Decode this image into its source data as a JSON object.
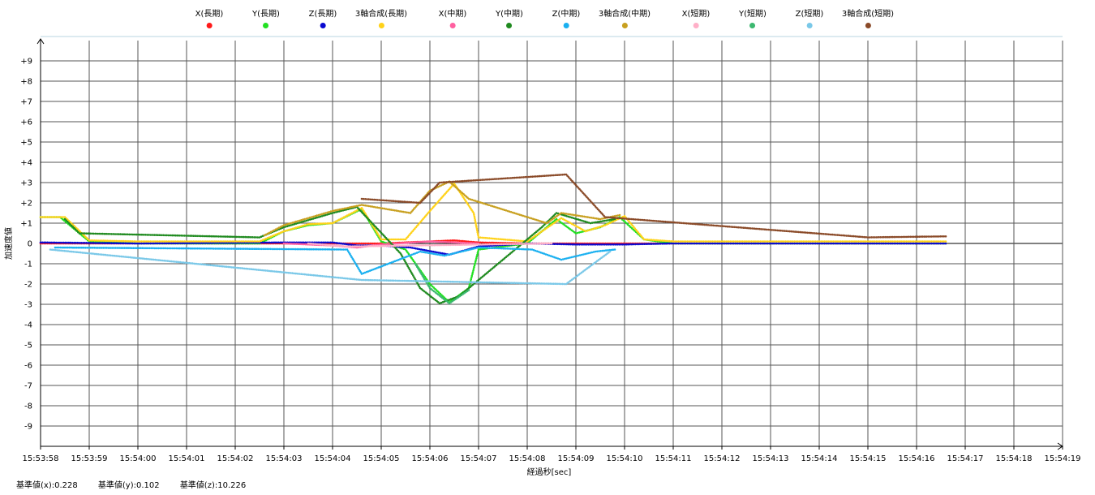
{
  "chart_data": {
    "type": "scatter",
    "title": "",
    "xlabel": "経過秒[sec]",
    "ylabel": "加速度値",
    "x_ticks": [
      "15:53:58",
      "15:53:59",
      "15:54:00",
      "15:54:01",
      "15:54:02",
      "15:54:03",
      "15:54:04",
      "15:54:05",
      "15:54:06",
      "15:54:07",
      "15:54:08",
      "15:54:09",
      "15:54:10",
      "15:54:11",
      "15:54:12",
      "15:54:13",
      "15:54:14",
      "15:54:15",
      "15:54:16",
      "15:54:17",
      "15:54:18",
      "15:54:19"
    ],
    "y_ticks": [
      "+9",
      "+8",
      "+7",
      "+6",
      "+5",
      "+4",
      "+3",
      "+2",
      "+1",
      "0",
      "-1",
      "-2",
      "-3",
      "-4",
      "-5",
      "-6",
      "-7",
      "-8",
      "-9"
    ],
    "ylim": [
      -10,
      10
    ],
    "xlim": [
      "15:53:58",
      "15:54:19"
    ],
    "grid": true,
    "legend_position": "top",
    "series": [
      {
        "name": "X(長期)",
        "color": "#ff1a1a",
        "points": [
          [
            "15:53:58",
            0.0
          ],
          [
            "15:54:00",
            0.0
          ],
          [
            "15:54:05",
            0.0
          ],
          [
            "15:54:06",
            0.1
          ],
          [
            "15:54:06.5",
            0.15
          ],
          [
            "15:54:07",
            0.05
          ],
          [
            "15:54:08",
            0.0
          ],
          [
            "15:54:11",
            0.0
          ],
          [
            "15:54:16.6",
            0.0
          ]
        ]
      },
      {
        "name": "Y(長期)",
        "color": "#22e022",
        "points": [
          [
            "15:53:58",
            1.3
          ],
          [
            "15:53:58.4",
            1.3
          ],
          [
            "15:53:59",
            0.1
          ],
          [
            "15:54:00",
            0.0
          ],
          [
            "15:54:02.5",
            0.0
          ],
          [
            "15:54:03",
            0.6
          ],
          [
            "15:54:03.5",
            0.9
          ],
          [
            "15:54:04",
            1.0
          ],
          [
            "15:54:04.6",
            1.7
          ],
          [
            "15:54:05",
            0.1
          ],
          [
            "15:54:05.5",
            -0.3
          ],
          [
            "15:54:06",
            -2.0
          ],
          [
            "15:54:06.4",
            -2.9
          ],
          [
            "15:54:06.8",
            -2.2
          ],
          [
            "15:54:07",
            -0.3
          ],
          [
            "15:54:08",
            0.0
          ],
          [
            "15:54:08.6",
            1.2
          ],
          [
            "15:54:09",
            0.5
          ],
          [
            "15:54:09.5",
            0.8
          ],
          [
            "15:54:09.9",
            1.3
          ],
          [
            "15:54:10.4",
            0.2
          ],
          [
            "15:54:11",
            0.0
          ],
          [
            "15:54:16.6",
            0.0
          ]
        ]
      },
      {
        "name": "Z(長期)",
        "color": "#0a0ad0",
        "points": [
          [
            "15:53:58",
            0.05
          ],
          [
            "15:54:00",
            0.0
          ],
          [
            "15:54:03",
            0.05
          ],
          [
            "15:54:04",
            0.05
          ],
          [
            "15:54:04.5",
            -0.1
          ],
          [
            "15:54:05",
            -0.1
          ],
          [
            "15:54:05.6",
            -0.2
          ],
          [
            "15:54:06.4",
            -0.55
          ],
          [
            "15:54:07",
            -0.15
          ],
          [
            "15:54:08",
            0.0
          ],
          [
            "15:54:09",
            -0.05
          ],
          [
            "15:54:10",
            -0.05
          ],
          [
            "15:54:11",
            0.0
          ],
          [
            "15:54:16.6",
            0.0
          ]
        ]
      },
      {
        "name": "3軸合成(長期)",
        "color": "#ffd21a",
        "points": [
          [
            "15:53:58",
            1.3
          ],
          [
            "15:53:58.5",
            1.3
          ],
          [
            "15:53:59",
            0.15
          ],
          [
            "15:54:00",
            0.1
          ],
          [
            "15:54:02.5",
            0.1
          ],
          [
            "15:54:03",
            0.6
          ],
          [
            "15:54:03.5",
            0.95
          ],
          [
            "15:54:04",
            1.0
          ],
          [
            "15:54:04.6",
            1.75
          ],
          [
            "15:54:05",
            0.2
          ],
          [
            "15:54:05.5",
            0.2
          ],
          [
            "15:54:06",
            1.6
          ],
          [
            "15:54:06.5",
            2.95
          ],
          [
            "15:54:06.9",
            1.5
          ],
          [
            "15:54:07",
            0.3
          ],
          [
            "15:54:08",
            0.1
          ],
          [
            "15:54:08.7",
            1.25
          ],
          [
            "15:54:09.2",
            0.6
          ],
          [
            "15:54:09.6",
            0.9
          ],
          [
            "15:54:10",
            1.35
          ],
          [
            "15:54:10.4",
            0.2
          ],
          [
            "15:54:11",
            0.1
          ],
          [
            "15:54:16.6",
            0.1
          ]
        ]
      },
      {
        "name": "X(中期)",
        "color": "#ff60a0",
        "points": [
          [
            "15:54:03",
            0.0
          ],
          [
            "15:54:04",
            -0.1
          ],
          [
            "15:54:04.5",
            -0.2
          ],
          [
            "15:54:05",
            -0.05
          ],
          [
            "15:54:06",
            0.1
          ],
          [
            "15:54:07",
            0.0
          ]
        ]
      },
      {
        "name": "Y(中期)",
        "color": "#1f8a1f",
        "points": [
          [
            "15:53:58.5",
            1.2
          ],
          [
            "15:53:58.8",
            0.5
          ],
          [
            "15:54:02.5",
            0.3
          ],
          [
            "15:54:03",
            0.8
          ],
          [
            "15:54:04",
            1.5
          ],
          [
            "15:54:04.5",
            1.8
          ],
          [
            "15:54:05.4",
            -0.5
          ],
          [
            "15:54:05.8",
            -2.2
          ],
          [
            "15:54:06.2",
            -2.95
          ],
          [
            "15:54:06.6",
            -2.6
          ],
          [
            "15:54:08.3",
            0.8
          ],
          [
            "15:54:08.6",
            1.5
          ],
          [
            "15:54:09.3",
            1.0
          ],
          [
            "15:54:09.8",
            1.2
          ]
        ]
      },
      {
        "name": "Z(中期)",
        "color": "#1ab0f0",
        "points": [
          [
            "15:53:58.3",
            -0.2
          ],
          [
            "15:54:04.3",
            -0.3
          ],
          [
            "15:54:04.6",
            -1.5
          ],
          [
            "15:54:05.8",
            -0.4
          ],
          [
            "15:54:06.3",
            -0.6
          ],
          [
            "15:54:07",
            -0.2
          ],
          [
            "15:54:08.1",
            -0.3
          ],
          [
            "15:54:08.7",
            -0.8
          ],
          [
            "15:54:09.4",
            -0.4
          ],
          [
            "15:54:09.8",
            -0.3
          ]
        ]
      },
      {
        "name": "3軸合成(中期)",
        "color": "#c8a020",
        "points": [
          [
            "15:54:02.6",
            0.4
          ],
          [
            "15:54:03",
            0.9
          ],
          [
            "15:54:04",
            1.6
          ],
          [
            "15:54:04.6",
            1.9
          ],
          [
            "15:54:05.6",
            1.5
          ],
          [
            "15:54:06",
            2.6
          ],
          [
            "15:54:06.4",
            3.05
          ],
          [
            "15:54:06.8",
            2.2
          ],
          [
            "15:54:08.4",
            1.0
          ],
          [
            "15:54:08.7",
            1.5
          ],
          [
            "15:54:09.5",
            1.2
          ],
          [
            "15:54:09.9",
            1.4
          ]
        ]
      },
      {
        "name": "X(短期)",
        "color": "#ffb0c8",
        "points": [
          [
            "15:54:03.5",
            0.0
          ],
          [
            "15:54:04.3",
            -0.15
          ],
          [
            "15:54:08.5",
            0.0
          ]
        ]
      },
      {
        "name": "Y(短期)",
        "color": "#3cb870",
        "points": [
          [
            "15:54:05.7",
            -1.0
          ],
          [
            "15:54:06",
            -2.2
          ],
          [
            "15:54:06.4",
            -2.95
          ],
          [
            "15:54:06.8",
            -2.3
          ]
        ]
      },
      {
        "name": "Z(短期)",
        "color": "#7ac8e8",
        "points": [
          [
            "15:53:58.2",
            -0.3
          ],
          [
            "15:54:04.6",
            -1.8
          ],
          [
            "15:54:08.8",
            -2.0
          ],
          [
            "15:54:09.7",
            -0.4
          ]
        ]
      },
      {
        "name": "3軸合成(短期)",
        "color": "#8a4a28",
        "points": [
          [
            "15:54:04.6",
            2.2
          ],
          [
            "15:54:05.8",
            2.0
          ],
          [
            "15:54:06.2",
            3.0
          ],
          [
            "15:54:08.8",
            3.4
          ],
          [
            "15:54:09.6",
            1.3
          ],
          [
            "15:54:15",
            0.3
          ],
          [
            "15:54:16.6",
            0.35
          ]
        ]
      }
    ]
  },
  "footer": {
    "base_x": "基準値(x):0.228",
    "base_y": "基準値(y):0.102",
    "base_z": "基準値(z):10.226"
  }
}
